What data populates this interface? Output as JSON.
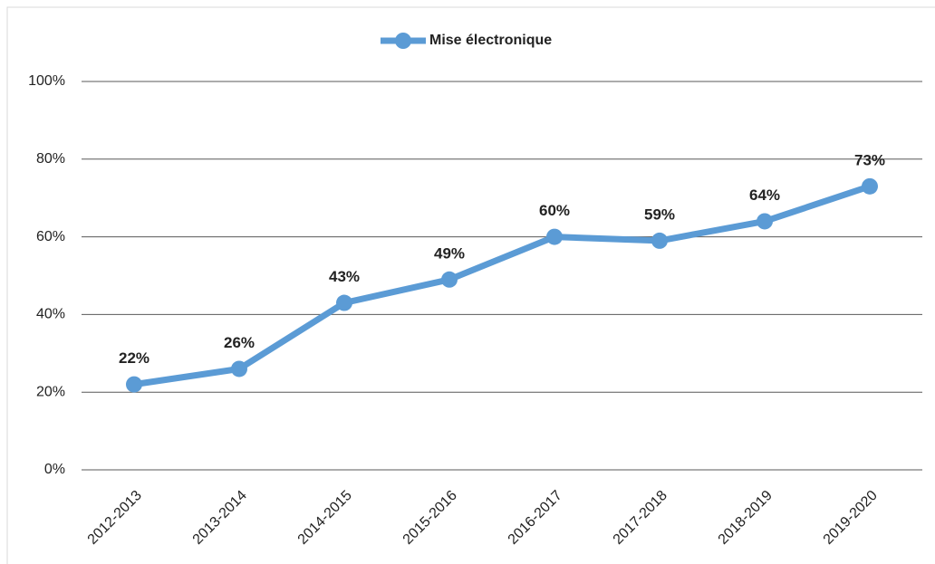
{
  "chart_data": {
    "type": "line",
    "categories": [
      "2012-2013",
      "2013-2014",
      "2014-2015",
      "2015-2016",
      "2016-2017",
      "2017-2018",
      "2018-2019",
      "2019-2020"
    ],
    "series": [
      {
        "name": "Mise électronique",
        "color": "#5b9bd5",
        "values": [
          22,
          26,
          43,
          49,
          60,
          59,
          64,
          73
        ],
        "value_labels": [
          "22%",
          "26%",
          "43%",
          "49%",
          "60%",
          "59%",
          "64%",
          "73%"
        ]
      }
    ],
    "ylim": [
      0,
      100
    ],
    "yticks": [
      {
        "value": 0,
        "label": "0%"
      },
      {
        "value": 20,
        "label": "20%"
      },
      {
        "value": 40,
        "label": "40%"
      },
      {
        "value": 60,
        "label": "60%"
      },
      {
        "value": 80,
        "label": "80%"
      },
      {
        "value": 100,
        "label": "100%"
      }
    ],
    "grid": true,
    "legend": "top"
  }
}
